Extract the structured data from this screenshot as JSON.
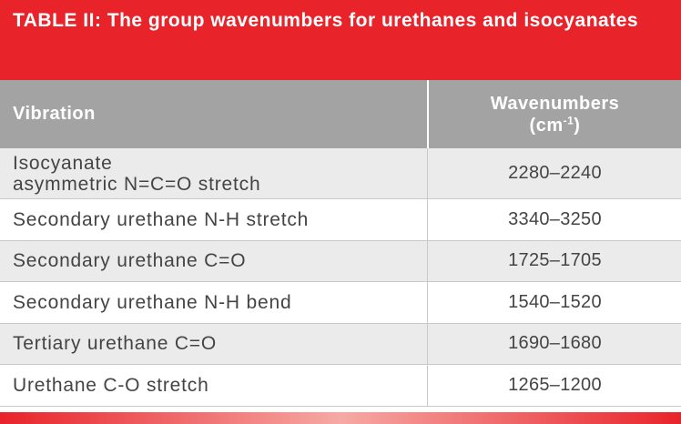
{
  "title": "TABLE II: The group wavenumbers for urethanes and isocyanates",
  "header": {
    "vibration": "Vibration",
    "wavenumbers": "Wavenumbers",
    "unit_open": "(cm",
    "unit_exponent": "-1",
    "unit_close": ")"
  },
  "rows": [
    {
      "vibration": [
        "Isocyanate",
        "asymmetric N=C=O stretch"
      ],
      "wavenumbers": "2280–2240"
    },
    {
      "vibration": [
        "Secondary urethane N-H stretch"
      ],
      "wavenumbers": "3340–3250"
    },
    {
      "vibration": [
        "Secondary urethane C=O"
      ],
      "wavenumbers": "1725–1705"
    },
    {
      "vibration": [
        "Secondary urethane N-H bend"
      ],
      "wavenumbers": "1540–1520"
    },
    {
      "vibration": [
        "Tertiary urethane C=O"
      ],
      "wavenumbers": "1690–1680"
    },
    {
      "vibration": [
        "Urethane C-O stretch"
      ],
      "wavenumbers": "1265–1200"
    }
  ]
}
